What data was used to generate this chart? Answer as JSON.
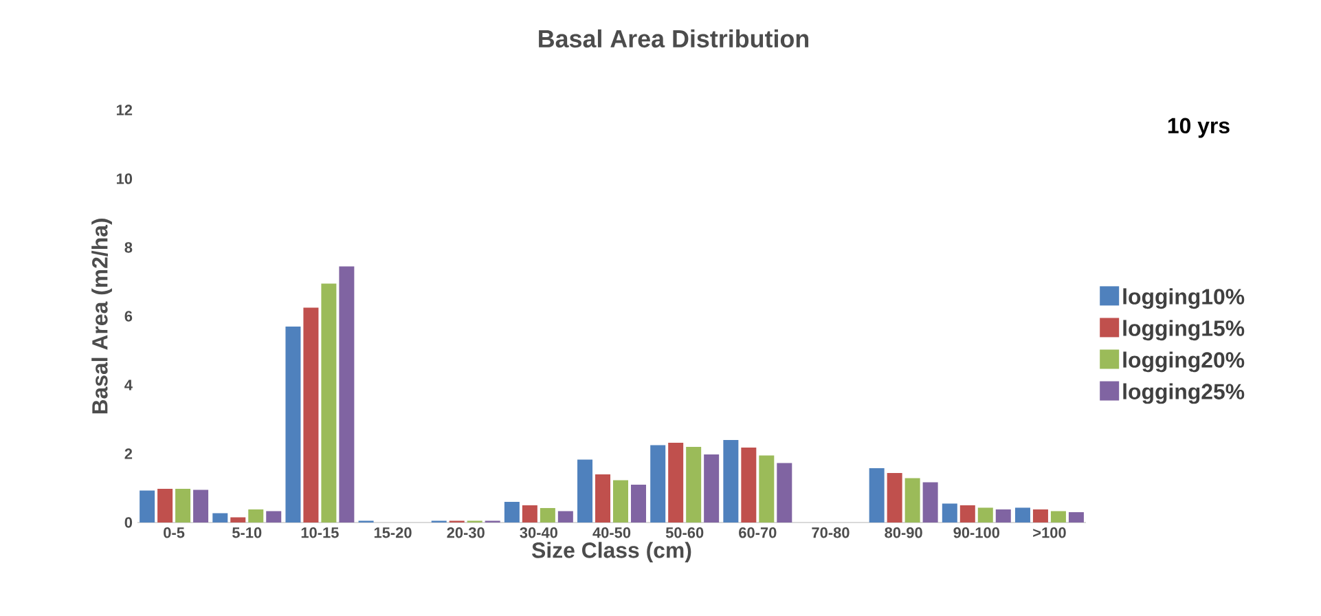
{
  "chart_data": {
    "type": "bar",
    "title": "Basal  Area Distribution",
    "xlabel": "Size Class (cm)",
    "ylabel": "Basal Area (m2/ha)",
    "annotations": [
      "10 yrs"
    ],
    "categories": [
      "0-5",
      "5-10",
      "10-15",
      "15-20",
      "20-30",
      "30-40",
      "40-50",
      "50-60",
      "60-70",
      "70-80",
      "80-90",
      "90-100",
      ">100"
    ],
    "series": [
      {
        "name": "logging10%",
        "color": "#4f81bd",
        "values": [
          0.93,
          0.27,
          5.7,
          0.05,
          0.05,
          0.6,
          1.83,
          2.25,
          2.4,
          null,
          1.58,
          0.55,
          0.43
        ]
      },
      {
        "name": "logging15%",
        "color": "#c0504d",
        "values": [
          0.98,
          0.15,
          6.25,
          null,
          0.05,
          0.5,
          1.4,
          2.32,
          2.18,
          null,
          1.44,
          0.5,
          0.38
        ]
      },
      {
        "name": "logging20%",
        "color": "#9bbb59",
        "values": [
          0.98,
          0.38,
          6.95,
          null,
          0.05,
          0.42,
          1.23,
          2.2,
          1.95,
          null,
          1.29,
          0.43,
          0.33
        ]
      },
      {
        "name": "logging25%",
        "color": "#8064a2",
        "values": [
          0.95,
          0.33,
          7.45,
          null,
          0.05,
          0.33,
          1.1,
          1.98,
          1.73,
          null,
          1.17,
          0.38,
          0.3
        ]
      }
    ],
    "ylim": [
      0,
      12
    ],
    "yticks": [
      0,
      2,
      4,
      6,
      8,
      10,
      12
    ],
    "legend": "right"
  }
}
